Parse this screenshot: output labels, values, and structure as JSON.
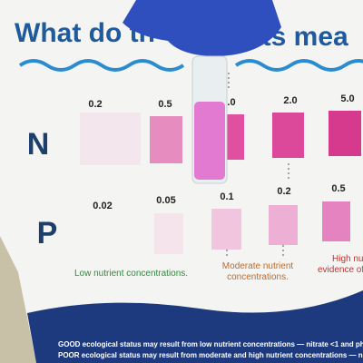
{
  "title": {
    "left": "What do th",
    "right": "ults mea"
  },
  "rows": [
    {
      "label": "N",
      "levels": [
        "0.2",
        "0.5",
        ".0",
        "2.0",
        "5.0"
      ]
    },
    {
      "label": "P",
      "levels": [
        "0.02",
        "0.05",
        "0.1",
        "0.2",
        "0.5"
      ]
    }
  ],
  "legend": {
    "low": "Low nutrient concentrations.",
    "moderate": [
      "Moderate nutrient",
      "concentrations."
    ],
    "high": [
      "High nutri",
      "evidence of"
    ]
  },
  "footer": [
    "GOOD ecological status may result from low nutrient concentrations — nitrate <1 and ph",
    "POOR ecological status may result from moderate and high nutrient concentrations — ni"
  ]
}
